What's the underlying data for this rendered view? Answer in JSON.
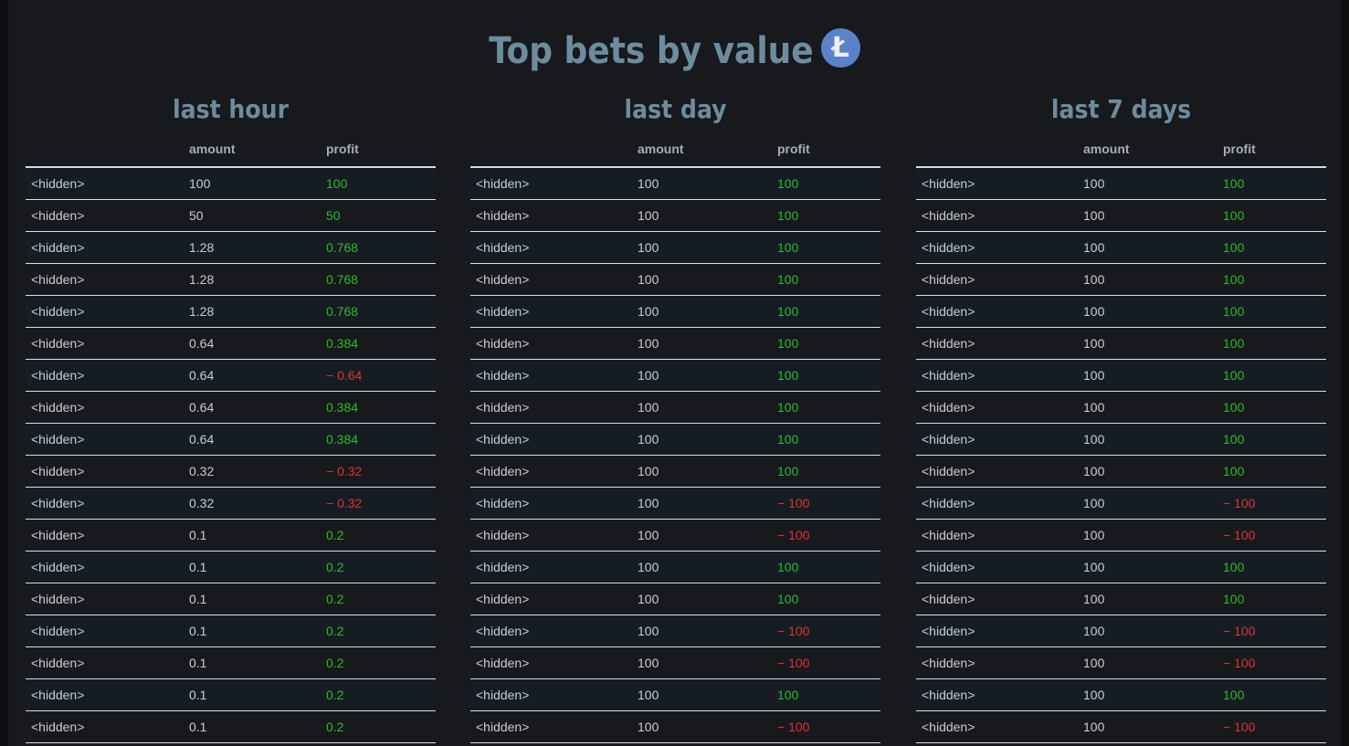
{
  "page": {
    "title": "Top bets by value",
    "coin_icon": "litecoin-icon",
    "coin_glyph": "Ł",
    "colors": {
      "positive": "#2dbb2d",
      "negative": "#e0323a",
      "heading": "#6d8ca0",
      "coin": "#5b82c9"
    }
  },
  "columns": {
    "user": "",
    "amount": "amount",
    "profit": "profit"
  },
  "panels": [
    {
      "title": "last hour",
      "rows": [
        {
          "user": "<hidden>",
          "amount": "100",
          "profit": "100",
          "sign": "pos"
        },
        {
          "user": "<hidden>",
          "amount": "50",
          "profit": "50",
          "sign": "pos"
        },
        {
          "user": "<hidden>",
          "amount": "1.28",
          "profit": "0.768",
          "sign": "pos"
        },
        {
          "user": "<hidden>",
          "amount": "1.28",
          "profit": "0.768",
          "sign": "pos"
        },
        {
          "user": "<hidden>",
          "amount": "1.28",
          "profit": "0.768",
          "sign": "pos"
        },
        {
          "user": "<hidden>",
          "amount": "0.64",
          "profit": "0.384",
          "sign": "pos"
        },
        {
          "user": "<hidden>",
          "amount": "0.64",
          "profit": "− 0.64",
          "sign": "neg"
        },
        {
          "user": "<hidden>",
          "amount": "0.64",
          "profit": "0.384",
          "sign": "pos"
        },
        {
          "user": "<hidden>",
          "amount": "0.64",
          "profit": "0.384",
          "sign": "pos"
        },
        {
          "user": "<hidden>",
          "amount": "0.32",
          "profit": "− 0.32",
          "sign": "neg"
        },
        {
          "user": "<hidden>",
          "amount": "0.32",
          "profit": "− 0.32",
          "sign": "neg"
        },
        {
          "user": "<hidden>",
          "amount": "0.1",
          "profit": "0.2",
          "sign": "pos"
        },
        {
          "user": "<hidden>",
          "amount": "0.1",
          "profit": "0.2",
          "sign": "pos"
        },
        {
          "user": "<hidden>",
          "amount": "0.1",
          "profit": "0.2",
          "sign": "pos"
        },
        {
          "user": "<hidden>",
          "amount": "0.1",
          "profit": "0.2",
          "sign": "pos"
        },
        {
          "user": "<hidden>",
          "amount": "0.1",
          "profit": "0.2",
          "sign": "pos"
        },
        {
          "user": "<hidden>",
          "amount": "0.1",
          "profit": "0.2",
          "sign": "pos"
        },
        {
          "user": "<hidden>",
          "amount": "0.1",
          "profit": "0.2",
          "sign": "pos"
        }
      ]
    },
    {
      "title": "last day",
      "rows": [
        {
          "user": "<hidden>",
          "amount": "100",
          "profit": "100",
          "sign": "pos"
        },
        {
          "user": "<hidden>",
          "amount": "100",
          "profit": "100",
          "sign": "pos"
        },
        {
          "user": "<hidden>",
          "amount": "100",
          "profit": "100",
          "sign": "pos"
        },
        {
          "user": "<hidden>",
          "amount": "100",
          "profit": "100",
          "sign": "pos"
        },
        {
          "user": "<hidden>",
          "amount": "100",
          "profit": "100",
          "sign": "pos"
        },
        {
          "user": "<hidden>",
          "amount": "100",
          "profit": "100",
          "sign": "pos"
        },
        {
          "user": "<hidden>",
          "amount": "100",
          "profit": "100",
          "sign": "pos"
        },
        {
          "user": "<hidden>",
          "amount": "100",
          "profit": "100",
          "sign": "pos"
        },
        {
          "user": "<hidden>",
          "amount": "100",
          "profit": "100",
          "sign": "pos"
        },
        {
          "user": "<hidden>",
          "amount": "100",
          "profit": "100",
          "sign": "pos"
        },
        {
          "user": "<hidden>",
          "amount": "100",
          "profit": "− 100",
          "sign": "neg"
        },
        {
          "user": "<hidden>",
          "amount": "100",
          "profit": "− 100",
          "sign": "neg"
        },
        {
          "user": "<hidden>",
          "amount": "100",
          "profit": "100",
          "sign": "pos"
        },
        {
          "user": "<hidden>",
          "amount": "100",
          "profit": "100",
          "sign": "pos"
        },
        {
          "user": "<hidden>",
          "amount": "100",
          "profit": "− 100",
          "sign": "neg"
        },
        {
          "user": "<hidden>",
          "amount": "100",
          "profit": "− 100",
          "sign": "neg"
        },
        {
          "user": "<hidden>",
          "amount": "100",
          "profit": "100",
          "sign": "pos"
        },
        {
          "user": "<hidden>",
          "amount": "100",
          "profit": "− 100",
          "sign": "neg"
        }
      ]
    },
    {
      "title": "last 7 days",
      "rows": [
        {
          "user": "<hidden>",
          "amount": "100",
          "profit": "100",
          "sign": "pos"
        },
        {
          "user": "<hidden>",
          "amount": "100",
          "profit": "100",
          "sign": "pos"
        },
        {
          "user": "<hidden>",
          "amount": "100",
          "profit": "100",
          "sign": "pos"
        },
        {
          "user": "<hidden>",
          "amount": "100",
          "profit": "100",
          "sign": "pos"
        },
        {
          "user": "<hidden>",
          "amount": "100",
          "profit": "100",
          "sign": "pos"
        },
        {
          "user": "<hidden>",
          "amount": "100",
          "profit": "100",
          "sign": "pos"
        },
        {
          "user": "<hidden>",
          "amount": "100",
          "profit": "100",
          "sign": "pos"
        },
        {
          "user": "<hidden>",
          "amount": "100",
          "profit": "100",
          "sign": "pos"
        },
        {
          "user": "<hidden>",
          "amount": "100",
          "profit": "100",
          "sign": "pos"
        },
        {
          "user": "<hidden>",
          "amount": "100",
          "profit": "100",
          "sign": "pos"
        },
        {
          "user": "<hidden>",
          "amount": "100",
          "profit": "− 100",
          "sign": "neg"
        },
        {
          "user": "<hidden>",
          "amount": "100",
          "profit": "− 100",
          "sign": "neg"
        },
        {
          "user": "<hidden>",
          "amount": "100",
          "profit": "100",
          "sign": "pos"
        },
        {
          "user": "<hidden>",
          "amount": "100",
          "profit": "100",
          "sign": "pos"
        },
        {
          "user": "<hidden>",
          "amount": "100",
          "profit": "− 100",
          "sign": "neg"
        },
        {
          "user": "<hidden>",
          "amount": "100",
          "profit": "− 100",
          "sign": "neg"
        },
        {
          "user": "<hidden>",
          "amount": "100",
          "profit": "100",
          "sign": "pos"
        },
        {
          "user": "<hidden>",
          "amount": "100",
          "profit": "− 100",
          "sign": "neg"
        }
      ]
    }
  ]
}
